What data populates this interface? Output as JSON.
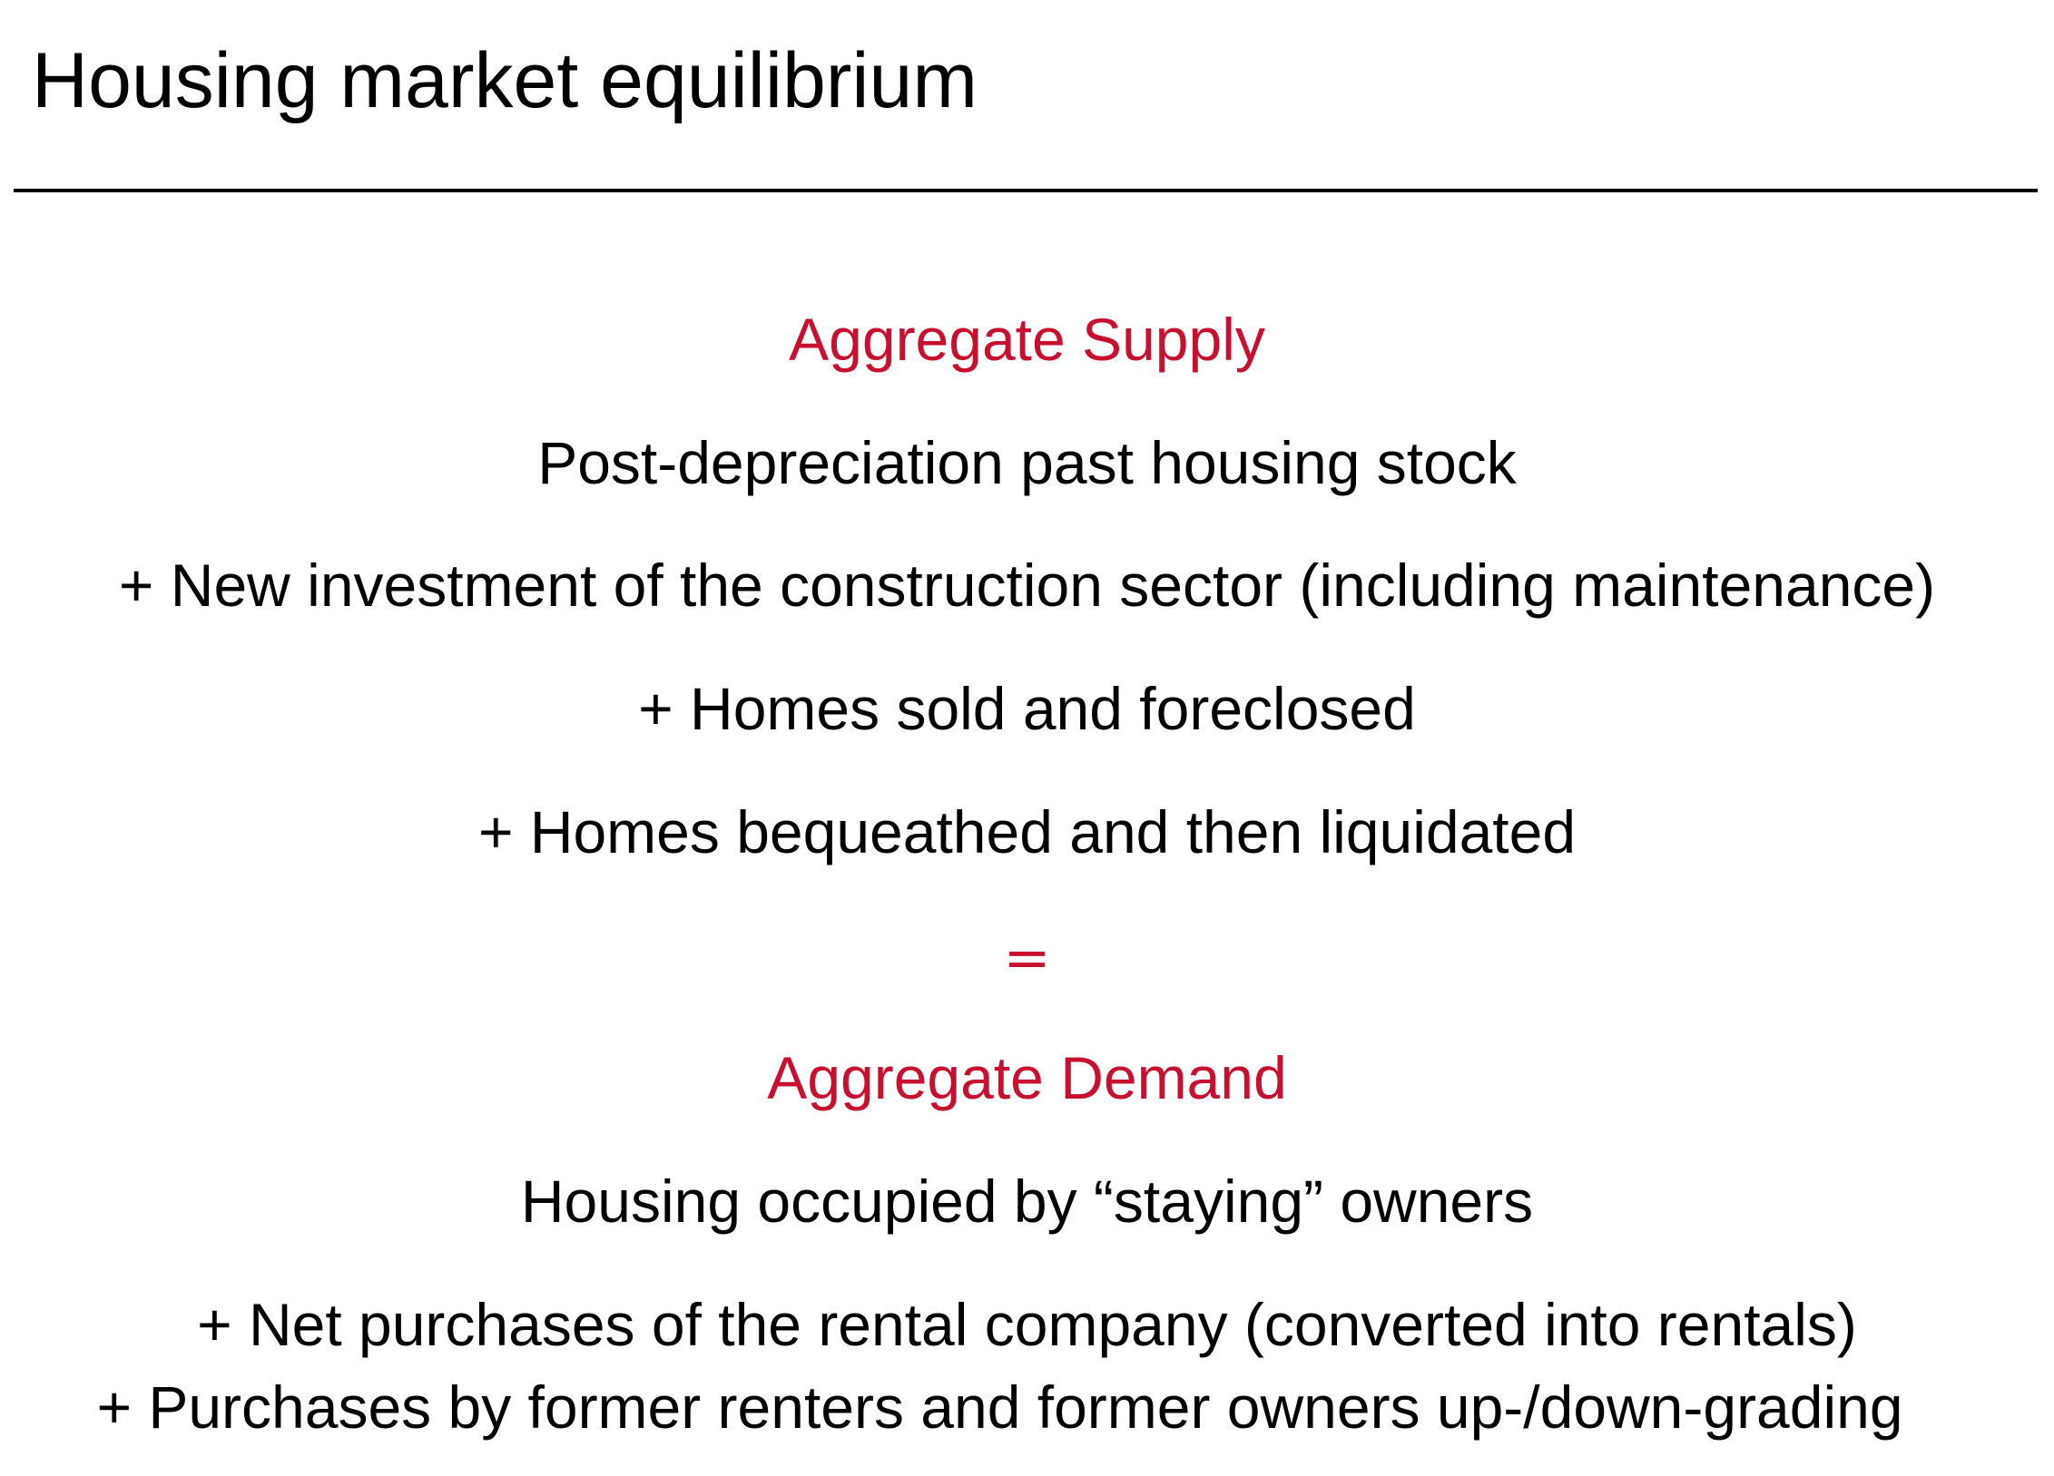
{
  "title": "Housing market equilibrium",
  "colors": {
    "accent": "#c8102e",
    "text": "#000000",
    "background": "#ffffff"
  },
  "supply": {
    "heading": "Aggregate Supply",
    "items": [
      "Post-depreciation past housing stock",
      "+ New investment of the construction sector (including maintenance)",
      "+ Homes sold and foreclosed",
      "+ Homes bequeathed and then liquidated"
    ]
  },
  "equals_sign": "=",
  "demand": {
    "heading": "Aggregate Demand",
    "items": [
      "Housing occupied by “staying” owners",
      "+ Net purchases of the rental company (converted into rentals)",
      "+ Purchases by former renters and former owners up-/down-grading"
    ]
  }
}
